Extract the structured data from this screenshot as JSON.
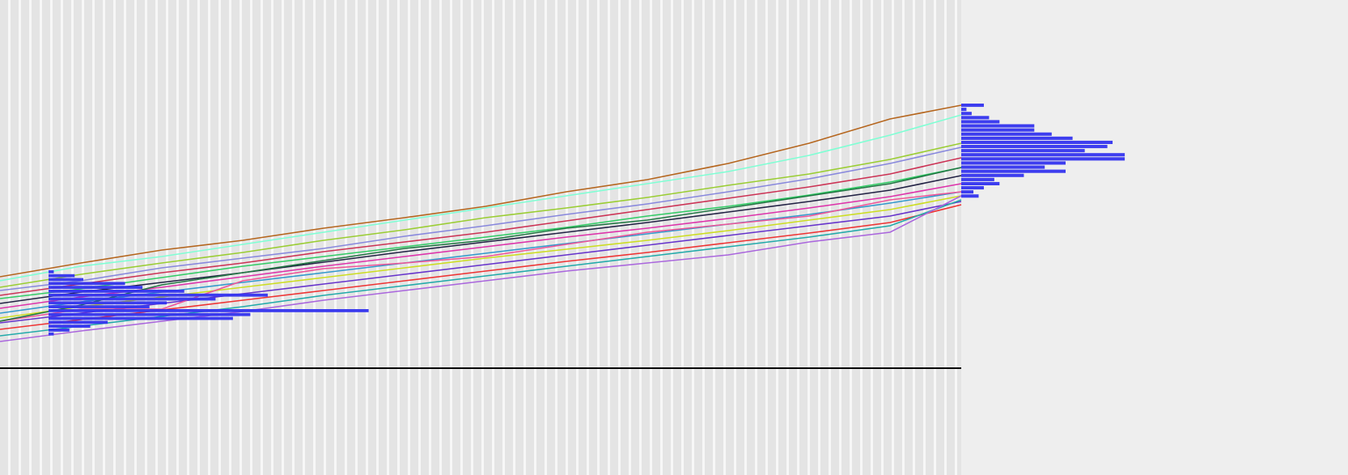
{
  "chart_data": {
    "type": "line",
    "x": [
      0,
      100,
      200,
      300,
      400,
      500,
      600,
      700,
      800,
      900,
      1000,
      1100,
      1188
    ],
    "xlim": [
      0,
      1188
    ],
    "ylim": [
      0,
      587
    ],
    "series": [
      {
        "color": "#b5651d",
        "values": [
          245,
          262,
          278,
          290,
          305,
          318,
          332,
          350,
          365,
          385,
          410,
          440,
          457
        ]
      },
      {
        "color": "#7fffd4",
        "values": [
          240,
          258,
          270,
          285,
          300,
          315,
          330,
          345,
          360,
          375,
          395,
          420,
          445
        ]
      },
      {
        "color": "#9acd32",
        "values": [
          232,
          248,
          262,
          275,
          290,
          303,
          318,
          330,
          343,
          358,
          372,
          390,
          410
        ]
      },
      {
        "color": "#8888dd",
        "values": [
          228,
          240,
          256,
          268,
          280,
          295,
          308,
          322,
          335,
          350,
          366,
          385,
          405
        ]
      },
      {
        "color": "#cc3355",
        "values": [
          222,
          236,
          250,
          262,
          276,
          288,
          300,
          314,
          328,
          342,
          356,
          372,
          392
        ]
      },
      {
        "color": "#33cc66",
        "values": [
          218,
          230,
          244,
          258,
          270,
          282,
          294,
          306,
          320,
          332,
          346,
          362,
          380
        ]
      },
      {
        "color": "#222244",
        "values": [
          212,
          226,
          238,
          250,
          263,
          276,
          288,
          300,
          312,
          325,
          338,
          352,
          370
        ]
      },
      {
        "color": "#dd33aa",
        "values": [
          206,
          220,
          232,
          245,
          258,
          270,
          282,
          294,
          305,
          317,
          330,
          344,
          360
        ]
      },
      {
        "color": "#3399cc",
        "values": [
          200,
          214,
          226,
          238,
          250,
          262,
          274,
          286,
          298,
          310,
          322,
          336,
          350
        ]
      },
      {
        "color": "#ccdd22",
        "values": [
          194,
          208,
          220,
          232,
          244,
          256,
          268,
          279,
          290,
          302,
          315,
          328,
          345
        ]
      },
      {
        "color": "#6633cc",
        "values": [
          188,
          200,
          212,
          224,
          236,
          248,
          260,
          272,
          284,
          296,
          308,
          320,
          338
        ]
      },
      {
        "color": "#ee3333",
        "values": [
          180,
          192,
          204,
          216,
          228,
          240,
          252,
          264,
          275,
          287,
          299,
          312,
          334
        ]
      },
      {
        "color": "#22aaaa",
        "values": [
          172,
          184,
          196,
          208,
          222,
          234,
          246,
          258,
          270,
          282,
          294,
          308,
          340
        ]
      },
      {
        "color": "#aa66dd",
        "values": [
          165,
          178,
          190,
          202,
          216,
          228,
          240,
          252,
          262,
          272,
          288,
          300,
          345
        ]
      },
      {
        "color": "#ee5599",
        "values": [
          190,
          205,
          205,
          240,
          255,
          262,
          270,
          285,
          300,
          310,
          320,
          340,
          350
        ]
      },
      {
        "color": "#227744",
        "values": [
          190,
          210,
          235,
          250,
          265,
          280,
          290,
          305,
          315,
          330,
          345,
          360,
          380
        ]
      }
    ],
    "start_histogram": {
      "color": "#3333ee",
      "values": [
        15,
        75,
        100,
        220,
        270,
        390,
        630,
        480,
        340,
        290,
        920,
        580,
        530,
        170,
        120,
        60,
        15
      ]
    },
    "end_histogram": {
      "color": "#3333ee",
      "values": [
        65,
        15,
        30,
        80,
        110,
        210,
        210,
        260,
        320,
        435,
        420,
        355,
        470,
        470,
        300,
        240,
        300,
        180,
        95,
        110,
        65,
        35,
        50
      ]
    }
  }
}
